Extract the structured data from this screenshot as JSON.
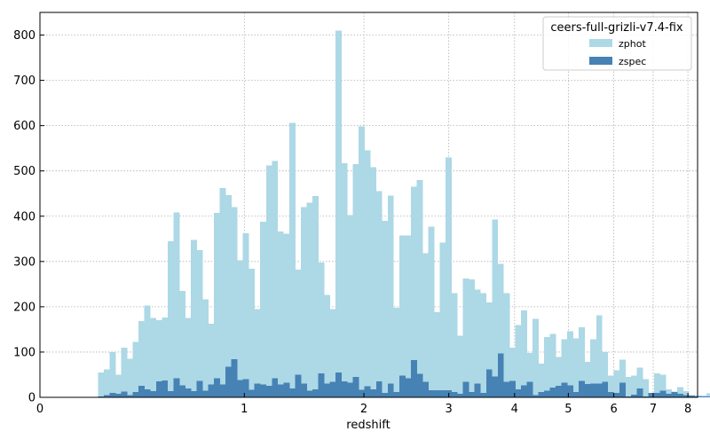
{
  "chart_data": {
    "type": "bar",
    "xlabel": "redshift",
    "ylabel": "",
    "x_scale": "log(1+z)",
    "xlim": [
      0,
      8.3
    ],
    "ylim": [
      0,
      850
    ],
    "x_ticks": [
      "0",
      "1",
      "2",
      "3",
      "4",
      "5",
      "6",
      "7",
      "8"
    ],
    "y_ticks": [
      "0",
      "100",
      "200",
      "300",
      "400",
      "500",
      "600",
      "700",
      "800"
    ],
    "grid": true,
    "legend": {
      "title": "ceers-full-grizli-v7.4-fix",
      "placement": "top-right"
    },
    "bins": {
      "description": "equal-width bins in log10(1+z)",
      "log1pz_start": 0.0856,
      "log1pz_width": 0.00853
    },
    "series": [
      {
        "name": "zphot",
        "color": "#add8e6",
        "values": [
          55,
          62,
          100,
          50,
          110,
          85,
          122,
          168,
          203,
          175,
          170,
          176,
          345,
          408,
          235,
          175,
          348,
          325,
          216,
          163,
          407,
          462,
          447,
          420,
          303,
          362,
          284,
          195,
          388,
          512,
          522,
          366,
          361,
          606,
          282,
          420,
          430,
          445,
          298,
          226,
          195,
          810,
          517,
          402,
          515,
          598,
          545,
          508,
          455,
          390,
          446,
          198,
          357,
          357,
          465,
          480,
          318,
          377,
          188,
          342,
          530,
          230,
          136,
          262,
          260,
          238,
          230,
          210,
          393,
          295,
          230,
          110,
          160,
          192,
          98,
          173,
          74,
          133,
          140,
          89,
          128,
          146,
          130,
          155,
          78,
          128,
          181,
          100,
          48,
          60,
          83,
          45,
          48,
          66,
          40,
          10,
          53,
          50,
          18,
          13,
          23,
          14,
          5,
          3,
          4,
          9,
          10,
          8
        ]
      },
      {
        "name": "zspec",
        "color": "#4682b4",
        "values": [
          2,
          5,
          10,
          8,
          13,
          5,
          12,
          25,
          18,
          14,
          35,
          37,
          14,
          42,
          26,
          20,
          14,
          36,
          15,
          28,
          42,
          28,
          68,
          84,
          38,
          40,
          17,
          30,
          28,
          25,
          42,
          28,
          32,
          20,
          50,
          30,
          15,
          18,
          53,
          30,
          34,
          55,
          35,
          32,
          45,
          17,
          24,
          18,
          35,
          10,
          30,
          12,
          48,
          42,
          82,
          52,
          34,
          16,
          16,
          16,
          16,
          12,
          8,
          34,
          12,
          30,
          10,
          62,
          46,
          97,
          34,
          36,
          18,
          26,
          34,
          5,
          12,
          15,
          22,
          25,
          32,
          26,
          12,
          36,
          29,
          30,
          30,
          34,
          12,
          10,
          32,
          2,
          6,
          20,
          2,
          10,
          10,
          15,
          8,
          12,
          8,
          5,
          4,
          3,
          2,
          2,
          3,
          2
        ]
      }
    ]
  }
}
